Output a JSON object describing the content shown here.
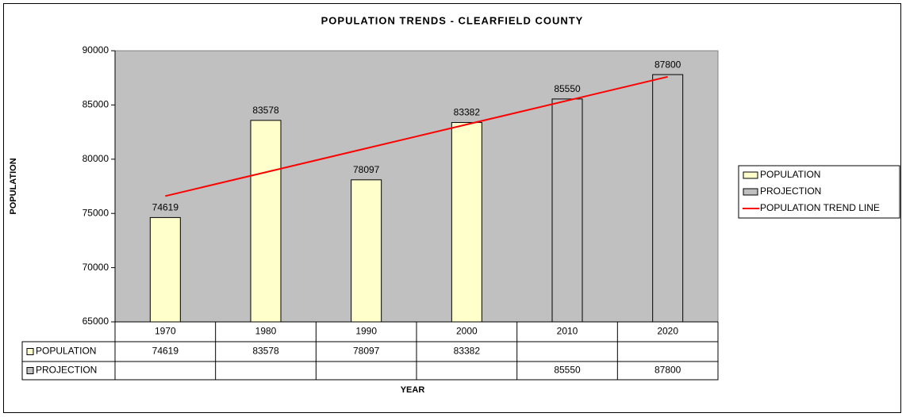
{
  "chart_data": {
    "type": "bar",
    "title": "POPULATION TRENDS - CLEARFIELD COUNTY",
    "x_label": "YEAR",
    "y_label": "POPULATION",
    "categories": [
      "1970",
      "1980",
      "1990",
      "2000",
      "2010",
      "2020"
    ],
    "series": [
      {
        "name": "POPULATION",
        "color": "#ffffcc",
        "values": [
          74619,
          83578,
          78097,
          83382,
          null,
          null
        ]
      },
      {
        "name": "PROJECTION",
        "color": "#c0c0c0",
        "values": [
          null,
          null,
          null,
          null,
          85550,
          87800
        ]
      },
      {
        "name": "POPULATION TREND LINE",
        "color": "#ff0000",
        "type": "line",
        "values": [
          76600,
          78800,
          81000,
          83200,
          85400,
          87600
        ]
      }
    ],
    "ylim": [
      65000,
      90000
    ],
    "yticks": [
      65000,
      70000,
      75000,
      80000,
      85000,
      90000
    ],
    "plot_background": "#c0c0c0",
    "legend": "right",
    "data_table": true
  }
}
